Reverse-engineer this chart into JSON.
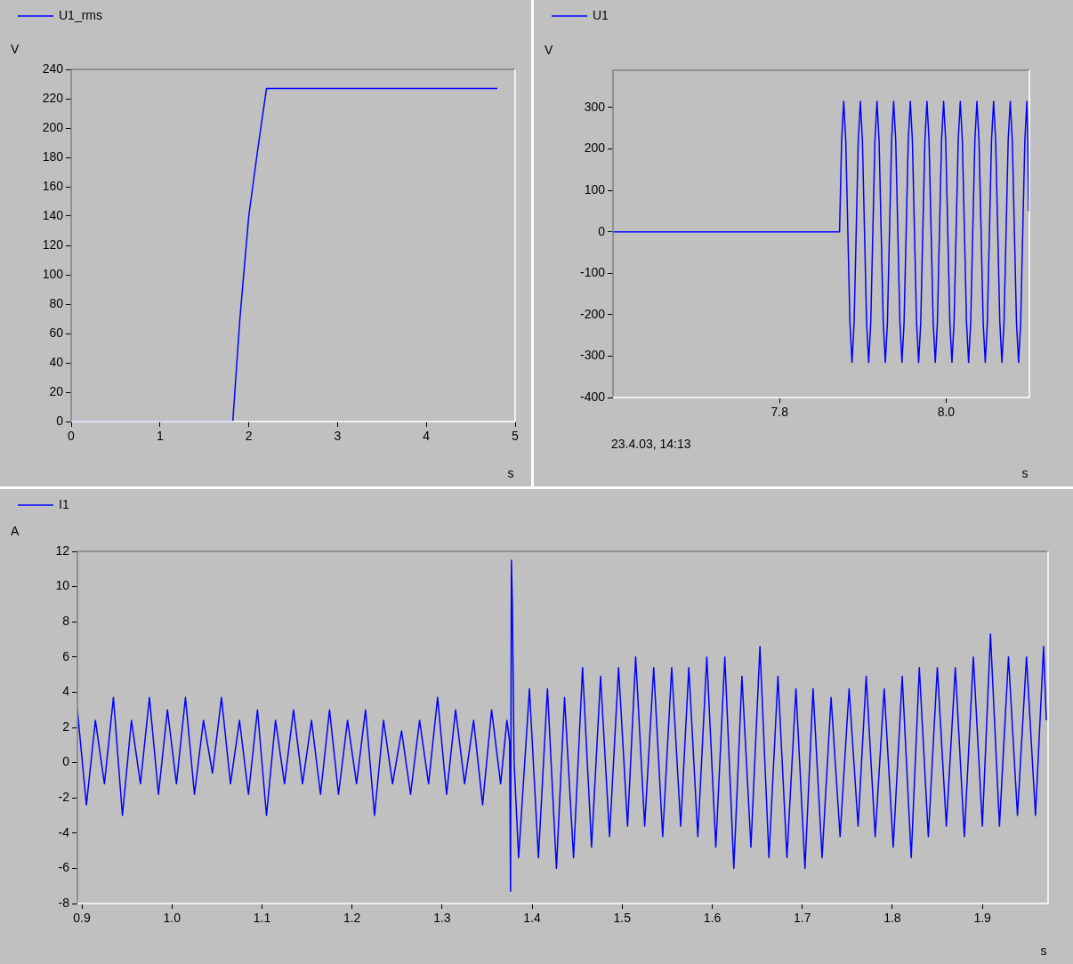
{
  "chart_data": [
    {
      "type": "line",
      "xlabel": "s",
      "ylabel": "V",
      "legend": "top left",
      "xlim": [
        0,
        5
      ],
      "ylim": [
        0,
        240
      ],
      "xticks": [
        0,
        1,
        2,
        3,
        4,
        5
      ],
      "yticks": [
        0,
        20,
        40,
        60,
        80,
        100,
        120,
        140,
        160,
        180,
        200,
        220,
        240
      ],
      "series": [
        {
          "name": "U1_rms",
          "color": "#0000ff",
          "x": [
            0,
            1.82,
            1.9,
            2.0,
            2.1,
            2.2,
            4.8
          ],
          "values": [
            0,
            0,
            70,
            140,
            185,
            227,
            227
          ]
        }
      ]
    },
    {
      "type": "line",
      "xlabel": "s",
      "ylabel": "V",
      "legend": "top left",
      "xlim": [
        7.6,
        8.1
      ],
      "ylim": [
        -400,
        390
      ],
      "xticks": [
        {
          "value": 7.8,
          "label": "7.8"
        },
        {
          "value": 8,
          "label": "8.0"
        }
      ],
      "yticks": [
        -400,
        -300,
        -200,
        -100,
        0,
        100,
        200,
        300
      ],
      "annotations": [
        "23.4.03, 14:13"
      ],
      "series": [
        {
          "name": "U1",
          "color": "#0000ff",
          "x": [
            7.6,
            7.871,
            7.872,
            7.8745,
            7.877,
            7.8795,
            7.882,
            7.8845,
            7.887,
            7.8895,
            7.892,
            7.8945,
            7.897,
            7.8995,
            7.902,
            7.9045,
            7.907,
            7.9095,
            7.912,
            7.9145,
            7.917,
            7.9195,
            7.922,
            7.9245,
            7.927,
            7.9295,
            7.932,
            7.9345,
            7.937,
            7.9395,
            7.942,
            7.9445,
            7.947,
            7.9495,
            7.952,
            7.9545,
            7.957,
            7.9595,
            7.962,
            7.9645,
            7.967,
            7.9695,
            7.972,
            7.9745,
            7.977,
            7.9795,
            7.982,
            7.9845,
            7.987,
            7.9895,
            7.992,
            7.9945,
            7.997,
            7.9995,
            8.002,
            8.0045,
            8.007,
            8.0095,
            8.012,
            8.0145,
            8.017,
            8.0195,
            8.022,
            8.0245,
            8.027,
            8.0295,
            8.032,
            8.0345,
            8.037,
            8.0395,
            8.042,
            8.0445,
            8.047,
            8.0495,
            8.052,
            8.0545,
            8.057,
            8.0595,
            8.062,
            8.0645,
            8.067,
            8.0695,
            8.072,
            8.0745,
            8.077,
            8.0795,
            8.082,
            8.0845,
            8.087,
            8.0895,
            8.092,
            8.0945,
            8.097,
            8.098,
            8.099
          ],
          "values": [
            0,
            0,
            0,
            220,
            315,
            220,
            0,
            -220,
            -315,
            -220,
            0,
            220,
            315,
            220,
            0,
            -220,
            -315,
            -220,
            0,
            220,
            315,
            220,
            0,
            -220,
            -315,
            -220,
            0,
            220,
            315,
            220,
            0,
            -220,
            -315,
            -220,
            0,
            220,
            315,
            220,
            0,
            -220,
            -315,
            -220,
            0,
            220,
            315,
            220,
            0,
            -220,
            -315,
            -220,
            0,
            220,
            315,
            220,
            0,
            -220,
            -315,
            -220,
            0,
            220,
            315,
            220,
            0,
            -220,
            -315,
            -220,
            0,
            220,
            315,
            220,
            0,
            -220,
            -315,
            -220,
            0,
            220,
            315,
            220,
            0,
            -220,
            -315,
            -220,
            0,
            220,
            315,
            220,
            0,
            -220,
            -315,
            -220,
            0,
            220,
            315,
            220,
            50
          ]
        }
      ]
    },
    {
      "type": "line",
      "xlabel": "s",
      "ylabel": "A",
      "legend": "top left",
      "xlim": [
        0.895,
        1.973
      ],
      "ylim": [
        -8,
        12
      ],
      "xticks": [
        0.9,
        {
          "value": 1,
          "label": "1.0"
        },
        1.1,
        1.2,
        1.3,
        1.4,
        1.5,
        1.6,
        1.7,
        1.8,
        1.9
      ],
      "yticks": [
        -8,
        -6,
        -4,
        -2,
        0,
        2,
        4,
        6,
        8,
        10,
        12
      ],
      "series": [
        {
          "name": "I1",
          "color": "#0000ff",
          "x": [
            0.895,
            0.905,
            0.915,
            0.925,
            0.935,
            0.945,
            0.955,
            0.965,
            0.975,
            0.985,
            0.995,
            1.005,
            1.015,
            1.025,
            1.035,
            1.045,
            1.055,
            1.065,
            1.075,
            1.085,
            1.095,
            1.105,
            1.115,
            1.125,
            1.135,
            1.145,
            1.155,
            1.165,
            1.175,
            1.185,
            1.195,
            1.205,
            1.215,
            1.225,
            1.235,
            1.245,
            1.255,
            1.265,
            1.275,
            1.285,
            1.295,
            1.305,
            1.315,
            1.325,
            1.335,
            1.345,
            1.355,
            1.365,
            1.372,
            1.375,
            1.376,
            1.377,
            1.378,
            1.38,
            1.385,
            1.397,
            1.407,
            1.417,
            1.427,
            1.436,
            1.446,
            1.456,
            1.466,
            1.476,
            1.486,
            1.496,
            1.506,
            1.515,
            1.525,
            1.535,
            1.545,
            1.555,
            1.565,
            1.574,
            1.584,
            1.594,
            1.604,
            1.614,
            1.624,
            1.633,
            1.643,
            1.653,
            1.663,
            1.673,
            1.683,
            1.693,
            1.703,
            1.712,
            1.722,
            1.732,
            1.742,
            1.752,
            1.762,
            1.771,
            1.781,
            1.791,
            1.801,
            1.811,
            1.821,
            1.83,
            1.84,
            1.85,
            1.86,
            1.87,
            1.88,
            1.89,
            1.9,
            1.909,
            1.919,
            1.929,
            1.939,
            1.949,
            1.959,
            1.968,
            1.971
          ],
          "values": [
            3.0,
            -2.4,
            2.4,
            -1.2,
            3.7,
            -3.0,
            2.4,
            -1.2,
            3.7,
            -1.8,
            3.0,
            -1.2,
            3.7,
            -1.8,
            2.4,
            -0.6,
            3.7,
            -1.2,
            2.4,
            -1.8,
            3.0,
            -3.0,
            2.4,
            -1.2,
            3.0,
            -1.2,
            2.4,
            -1.8,
            3.0,
            -1.8,
            2.4,
            -1.2,
            3.0,
            -3.0,
            2.4,
            -1.2,
            1.8,
            -1.8,
            2.4,
            -1.2,
            3.7,
            -1.8,
            3.0,
            -1.2,
            2.4,
            -2.4,
            3.0,
            -1.2,
            2.4,
            1.2,
            -7.3,
            11.5,
            9.1,
            0,
            -5.4,
            4.2,
            -5.4,
            4.2,
            -6.0,
            3.7,
            -5.4,
            5.4,
            -4.8,
            4.9,
            -4.2,
            5.4,
            -3.6,
            6.0,
            -3.6,
            5.4,
            -4.2,
            5.4,
            -3.6,
            5.4,
            -4.2,
            6.0,
            -4.8,
            6.0,
            -6.0,
            4.9,
            -4.8,
            6.6,
            -5.4,
            4.9,
            -5.4,
            4.2,
            -6.0,
            4.2,
            -5.4,
            3.7,
            -4.2,
            4.2,
            -3.6,
            4.9,
            -4.2,
            4.2,
            -4.8,
            4.9,
            -5.4,
            5.4,
            -4.2,
            5.4,
            -3.6,
            5.4,
            -4.2,
            6.0,
            -3.6,
            7.3,
            -3.6,
            6.0,
            -3.0,
            6.0,
            -3.0,
            6.6,
            2.4
          ]
        }
      ]
    }
  ]
}
